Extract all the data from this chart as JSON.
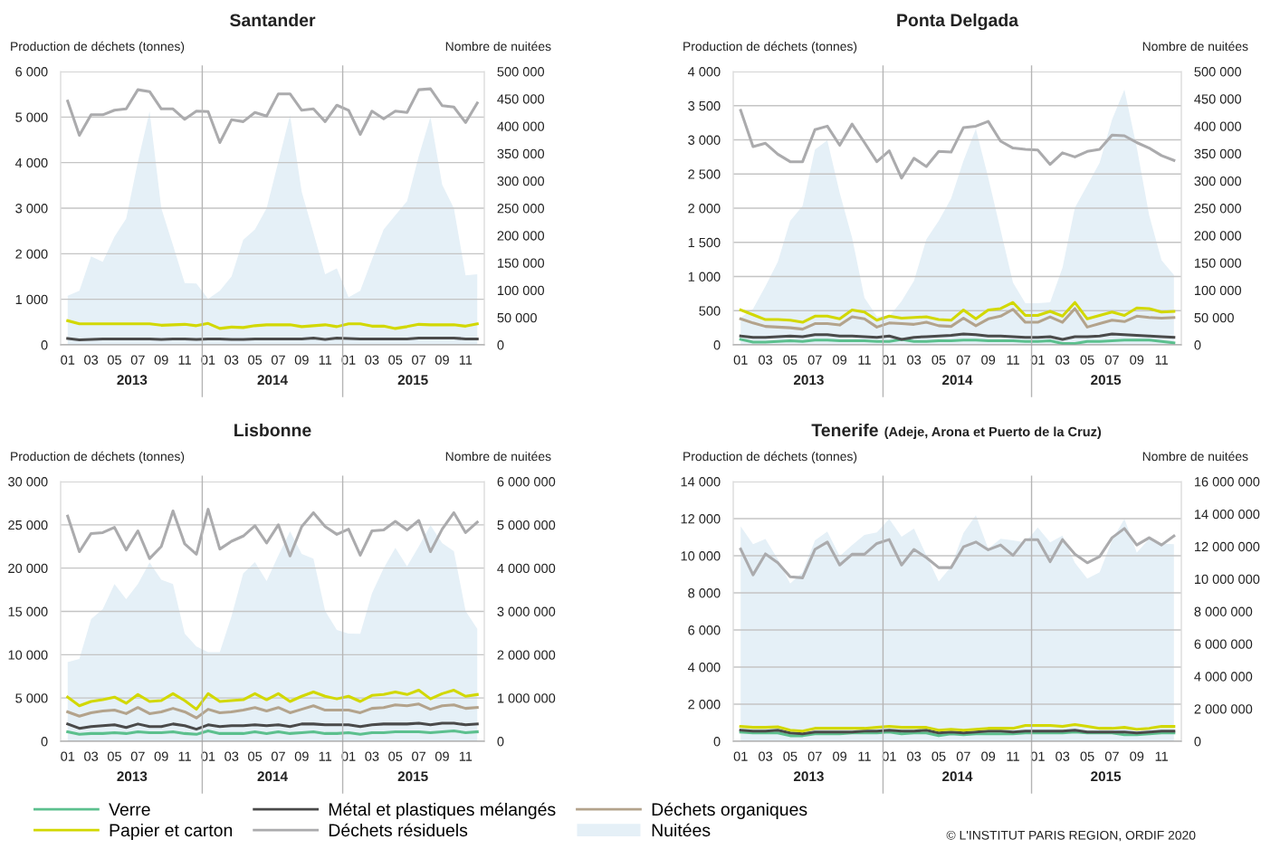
{
  "chart_data": [
    {
      "type": "line",
      "title": "Santander",
      "ylabel": "Production de déchets (tonnes)",
      "y2label": "Nombre de nuitées",
      "grid": "y",
      "legend": "bottom",
      "categories": [
        "01",
        null,
        "03",
        null,
        "05",
        null,
        "07",
        null,
        "09",
        null,
        "11",
        null,
        "01",
        null,
        "03",
        null,
        "05",
        null,
        "07",
        null,
        "09",
        null,
        "11",
        null,
        "01",
        null,
        "03",
        null,
        "05",
        null,
        "07",
        null,
        "09",
        null,
        "11",
        null
      ],
      "ylim": [
        0,
        6000
      ],
      "yticks": [
        0,
        {
          "value": 1000,
          "label": "1 000"
        },
        {
          "value": 2000,
          "label": "2 000"
        },
        {
          "value": 3000,
          "label": "3 000"
        },
        {
          "value": 4000,
          "label": "4 000"
        },
        {
          "value": 5000,
          "label": "5 000"
        },
        {
          "value": 6000,
          "label": "6 000"
        }
      ],
      "y2lim": [
        0,
        500000
      ],
      "y2ticks": [
        0,
        {
          "value": 50000,
          "label": "50 000"
        },
        {
          "value": 100000,
          "label": "100 000"
        },
        {
          "value": 150000,
          "label": "150 000"
        },
        {
          "value": 200000,
          "label": "200 000"
        },
        {
          "value": 250000,
          "label": "250 000"
        },
        {
          "value": 300000,
          "label": "300 000"
        },
        {
          "value": 350000,
          "label": "350 000"
        },
        {
          "value": 400000,
          "label": "400 000"
        },
        {
          "value": 450000,
          "label": "450 000"
        },
        {
          "value": 500000,
          "label": "500 000"
        }
      ],
      "annotations": [
        "2013",
        "2014",
        "2015"
      ],
      "series": [
        {
          "name": "Papier et carton",
          "color": "#d2d800",
          "values": [
            530,
            460,
            460,
            460,
            460,
            460,
            460,
            460,
            430,
            440,
            450,
            420,
            470,
            360,
            390,
            380,
            420,
            440,
            440,
            440,
            400,
            420,
            440,
            400,
            460,
            460,
            410,
            410,
            360,
            400,
            450,
            440,
            440,
            440,
            410,
            460
          ]
        },
        {
          "name": "Métal et plastiques mélangés",
          "color": "#4a4a4a",
          "values": [
            140,
            110,
            120,
            130,
            130,
            130,
            130,
            130,
            120,
            130,
            130,
            120,
            130,
            130,
            120,
            120,
            130,
            130,
            130,
            130,
            130,
            150,
            120,
            150,
            140,
            130,
            130,
            130,
            130,
            130,
            150,
            150,
            150,
            150,
            130,
            130
          ]
        },
        {
          "name": "Déchets résiduels",
          "color": "#ababad",
          "values": [
            5350,
            4600,
            5050,
            5050,
            5150,
            5180,
            5600,
            5560,
            5180,
            5180,
            4950,
            5130,
            5120,
            4440,
            4940,
            4900,
            5100,
            5020,
            5510,
            5510,
            5150,
            5180,
            4900,
            5260,
            5150,
            4620,
            5130,
            4960,
            5130,
            5100,
            5600,
            5620,
            5250,
            5220,
            4880,
            5310
          ]
        },
        {
          "name": "Nuitées",
          "type": "area",
          "axis": "y2",
          "color": "#e5f0f7",
          "values": [
            90000,
            99000,
            162000,
            152000,
            198000,
            231000,
            335000,
            427000,
            250000,
            182000,
            113000,
            112000,
            84000,
            99000,
            125000,
            192000,
            211000,
            250000,
            335000,
            420000,
            280000,
            205000,
            129000,
            140000,
            87000,
            99000,
            156000,
            211000,
            237000,
            263000,
            345000,
            417000,
            293000,
            250000,
            127000,
            129000
          ]
        }
      ]
    },
    {
      "type": "line",
      "title": "Ponta Delgada",
      "ylabel": "Production de déchets (tonnes)",
      "y2label": "Nombre de nuitées",
      "grid": "y",
      "legend": "bottom",
      "categories": [
        "01",
        null,
        "03",
        null,
        "05",
        null,
        "07",
        null,
        "09",
        null,
        "11",
        null,
        "01",
        null,
        "03",
        null,
        "05",
        null,
        "07",
        null,
        "09",
        null,
        "11",
        null,
        "01",
        null,
        "03",
        null,
        "05",
        null,
        "07",
        null,
        "09",
        null,
        "11",
        null
      ],
      "ylim": [
        0,
        4000
      ],
      "yticks": [
        0,
        500,
        {
          "value": 1000,
          "label": "1 000"
        },
        {
          "value": 1500,
          "label": "1 500"
        },
        {
          "value": 2000,
          "label": "2 000"
        },
        {
          "value": 2500,
          "label": "2 500"
        },
        {
          "value": 3000,
          "label": "3 000"
        },
        {
          "value": 3500,
          "label": "3 500"
        },
        {
          "value": 4000,
          "label": "4 000"
        }
      ],
      "y2lim": [
        0,
        500000
      ],
      "y2ticks": [
        0,
        {
          "value": 50000,
          "label": "50 000"
        },
        {
          "value": 100000,
          "label": "100 000"
        },
        {
          "value": 150000,
          "label": "150 000"
        },
        {
          "value": 200000,
          "label": "200 000"
        },
        {
          "value": 250000,
          "label": "250 000"
        },
        {
          "value": 300000,
          "label": "300 000"
        },
        {
          "value": 350000,
          "label": "350 000"
        },
        {
          "value": 400000,
          "label": "400 000"
        },
        {
          "value": 450000,
          "label": "450 000"
        },
        {
          "value": 500000,
          "label": "500 000"
        }
      ],
      "annotations": [
        "2013",
        "2014",
        "2015"
      ],
      "series": [
        {
          "name": "Verre",
          "color": "#5cc08e",
          "values": [
            80,
            40,
            40,
            50,
            60,
            50,
            70,
            70,
            60,
            60,
            60,
            50,
            50,
            80,
            50,
            50,
            60,
            60,
            70,
            70,
            60,
            60,
            60,
            50,
            50,
            60,
            20,
            20,
            50,
            50,
            60,
            70,
            70,
            70,
            50,
            30
          ]
        },
        {
          "name": "Papier et carton",
          "color": "#d2d800",
          "values": [
            510,
            440,
            370,
            370,
            360,
            330,
            420,
            420,
            380,
            510,
            480,
            360,
            420,
            390,
            400,
            410,
            370,
            360,
            510,
            380,
            510,
            530,
            620,
            430,
            430,
            490,
            420,
            620,
            380,
            430,
            480,
            430,
            540,
            530,
            480,
            490
          ]
        },
        {
          "name": "Métal et plastiques mélangés",
          "color": "#4a4a4a",
          "values": [
            130,
            110,
            110,
            120,
            130,
            120,
            150,
            150,
            130,
            130,
            120,
            110,
            130,
            80,
            110,
            120,
            130,
            140,
            160,
            150,
            130,
            130,
            120,
            110,
            110,
            120,
            80,
            120,
            120,
            130,
            160,
            150,
            140,
            130,
            120,
            110
          ]
        },
        {
          "name": "Déchets résiduels",
          "color": "#ababad",
          "values": [
            3430,
            2900,
            2950,
            2790,
            2680,
            2680,
            3150,
            3200,
            2920,
            3230,
            2960,
            2680,
            2840,
            2440,
            2730,
            2610,
            2830,
            2820,
            3180,
            3200,
            3270,
            2980,
            2880,
            2860,
            2850,
            2640,
            2810,
            2750,
            2830,
            2860,
            3070,
            3060,
            2960,
            2880,
            2770,
            2700
          ]
        },
        {
          "name": "Déchets organiques",
          "color": "#b3a38c",
          "values": [
            380,
            320,
            270,
            260,
            250,
            230,
            310,
            310,
            290,
            410,
            380,
            260,
            320,
            310,
            300,
            330,
            280,
            270,
            390,
            280,
            380,
            420,
            520,
            330,
            330,
            410,
            330,
            530,
            260,
            310,
            360,
            340,
            420,
            400,
            390,
            400
          ]
        },
        {
          "name": "Nuitées",
          "type": "area",
          "axis": "y2",
          "color": "#e5f0f7",
          "values": [
            50000,
            66000,
            107000,
            152000,
            227000,
            254000,
            357000,
            374000,
            278000,
            196000,
            86000,
            52000,
            52000,
            80000,
            117000,
            193000,
            227000,
            268000,
            337000,
            395000,
            306000,
            210000,
            114000,
            76000,
            76000,
            78000,
            141000,
            251000,
            292000,
            333000,
            412000,
            467000,
            361000,
            237000,
            155000,
            128000
          ]
        }
      ]
    },
    {
      "type": "line",
      "title": "Lisbonne",
      "ylabel": "Production de déchets (tonnes)",
      "y2label": "Nombre de nuitées",
      "grid": "y",
      "legend": "bottom",
      "categories": [
        "01",
        null,
        "03",
        null,
        "05",
        null,
        "07",
        null,
        "09",
        null,
        "11",
        null,
        "01",
        null,
        "03",
        null,
        "05",
        null,
        "07",
        null,
        "09",
        null,
        "11",
        null,
        "01",
        null,
        "03",
        null,
        "05",
        null,
        "07",
        null,
        "09",
        null,
        "11",
        null
      ],
      "ylim": [
        0,
        30000
      ],
      "yticks": [
        0,
        {
          "value": 5000,
          "label": "5 000"
        },
        {
          "value": 10000,
          "label": "10 000"
        },
        {
          "value": 15000,
          "label": "15 000"
        },
        {
          "value": 20000,
          "label": "20 000"
        },
        {
          "value": 25000,
          "label": "25 000"
        },
        {
          "value": 30000,
          "label": "30 000"
        }
      ],
      "y2lim": [
        0,
        6000000
      ],
      "y2ticks": [
        0,
        {
          "value": 1000000,
          "label": "1 000 000"
        },
        {
          "value": 2000000,
          "label": "2 000 000"
        },
        {
          "value": 3000000,
          "label": "3 000 000"
        },
        {
          "value": 4000000,
          "label": "4 000 000"
        },
        {
          "value": 5000000,
          "label": "5 000 000"
        },
        {
          "value": 6000000,
          "label": "6 000 000"
        }
      ],
      "annotations": [
        "2013",
        "2014",
        "2015"
      ],
      "series": [
        {
          "name": "Verre",
          "color": "#5cc08e",
          "values": [
            1100,
            800,
            900,
            900,
            1000,
            900,
            1100,
            1000,
            1000,
            1100,
            900,
            800,
            1200,
            900,
            900,
            900,
            1100,
            900,
            1100,
            900,
            1000,
            1100,
            900,
            900,
            1000,
            800,
            1000,
            1000,
            1100,
            1100,
            1100,
            1000,
            1100,
            1200,
            1000,
            1100
          ]
        },
        {
          "name": "Papier et carton",
          "color": "#d2d800",
          "values": [
            5100,
            4100,
            4600,
            4800,
            5100,
            4400,
            5400,
            4600,
            4700,
            5500,
            4700,
            3700,
            5500,
            4600,
            4700,
            4800,
            5500,
            4800,
            5500,
            4600,
            5200,
            5700,
            5200,
            4900,
            5200,
            4600,
            5300,
            5400,
            5700,
            5400,
            5900,
            4900,
            5500,
            5900,
            5200,
            5400
          ]
        },
        {
          "name": "Métal et plastiques mélangés",
          "color": "#4a4a4a",
          "values": [
            2000,
            1500,
            1700,
            1800,
            1900,
            1600,
            2000,
            1700,
            1700,
            2000,
            1800,
            1400,
            1900,
            1700,
            1800,
            1800,
            1900,
            1800,
            1900,
            1700,
            2000,
            2000,
            1900,
            1900,
            1900,
            1700,
            1900,
            2000,
            2000,
            2000,
            2100,
            1900,
            2100,
            2100,
            1900,
            2000
          ]
        },
        {
          "name": "Déchets résiduels",
          "color": "#ababad",
          "values": [
            26000,
            21900,
            24000,
            24100,
            24700,
            22100,
            24300,
            21100,
            22500,
            26600,
            22800,
            21600,
            26800,
            22200,
            23100,
            23700,
            24900,
            22900,
            25000,
            21400,
            24800,
            26400,
            24800,
            23900,
            24500,
            21500,
            24300,
            24400,
            25400,
            24400,
            25500,
            21900,
            24500,
            26400,
            24100,
            25300
          ]
        },
        {
          "name": "Déchets organiques",
          "color": "#b3a38c",
          "values": [
            3400,
            2900,
            3300,
            3500,
            3600,
            3200,
            3900,
            3200,
            3400,
            3800,
            3400,
            2700,
            3700,
            3300,
            3400,
            3600,
            3900,
            3500,
            3900,
            3300,
            3700,
            4100,
            3600,
            3600,
            3600,
            3300,
            3800,
            3900,
            4200,
            4100,
            4300,
            3700,
            4100,
            4200,
            3800,
            3900
          ]
        },
        {
          "name": "Nuitées",
          "type": "area",
          "axis": "y2",
          "color": "#e5f0f7",
          "values": [
            1830000,
            1900000,
            2820000,
            3050000,
            3630000,
            3280000,
            3630000,
            4130000,
            3730000,
            3630000,
            2490000,
            2190000,
            2060000,
            2060000,
            2890000,
            3880000,
            4140000,
            3700000,
            4290000,
            4850000,
            4330000,
            4220000,
            3010000,
            2570000,
            2490000,
            2480000,
            3420000,
            4000000,
            4470000,
            4040000,
            4500000,
            4990000,
            4580000,
            4390000,
            3010000,
            2600000
          ]
        }
      ]
    },
    {
      "type": "line",
      "title": "Tenerife",
      "subtitle": "(Adeje, Arona et Puerto de la Cruz)",
      "ylabel": "Production de déchets (tonnes)",
      "y2label": "Nombre de nuitées",
      "grid": "y",
      "legend": "bottom",
      "categories": [
        "01",
        null,
        "03",
        null,
        "05",
        null,
        "07",
        null,
        "09",
        null,
        "11",
        null,
        "01",
        null,
        "03",
        null,
        "05",
        null,
        "07",
        null,
        "09",
        null,
        "11",
        null,
        "01",
        null,
        "03",
        null,
        "05",
        null,
        "07",
        null,
        "09",
        null,
        "11",
        null
      ],
      "ylim": [
        0,
        14000
      ],
      "yticks": [
        0,
        {
          "value": 2000,
          "label": "2 000"
        },
        {
          "value": 4000,
          "label": "4 000"
        },
        {
          "value": 6000,
          "label": "6 000"
        },
        {
          "value": 8000,
          "label": "8 000"
        },
        {
          "value": 10000,
          "label": "10 000"
        },
        {
          "value": 12000,
          "label": "12 000"
        },
        {
          "value": 14000,
          "label": "14 000"
        }
      ],
      "y2lim": [
        0,
        16000000
      ],
      "y2ticks": [
        0,
        {
          "value": 2000000,
          "label": "2 000 000"
        },
        {
          "value": 4000000,
          "label": "4 000 000"
        },
        {
          "value": 6000000,
          "label": "6 000 000"
        },
        {
          "value": 8000000,
          "label": "8 000 000"
        },
        {
          "value": 10000000,
          "label": "10 000 000"
        },
        {
          "value": 12000000,
          "label": "12 000 000"
        },
        {
          "value": 14000000,
          "label": "14 000 000"
        },
        {
          "value": 16000000,
          "label": "16 000 000"
        }
      ],
      "annotations": [
        "2013",
        "2014",
        "2015",
        "© L'INSTITUT PARIS REGION, ORDIF 2020"
      ],
      "series": [
        {
          "name": "Verre",
          "color": "#5cc08e",
          "values": [
            500,
            450,
            450,
            450,
            300,
            300,
            400,
            400,
            400,
            450,
            450,
            450,
            500,
            400,
            450,
            450,
            300,
            400,
            350,
            400,
            400,
            400,
            400,
            450,
            450,
            450,
            450,
            500,
            450,
            450,
            450,
            350,
            350,
            400,
            450,
            450
          ]
        },
        {
          "name": "Métal et plastiques mélangés",
          "color": "#4a4a4a",
          "values": [
            600,
            550,
            550,
            600,
            450,
            400,
            500,
            500,
            500,
            500,
            550,
            550,
            600,
            550,
            550,
            600,
            450,
            500,
            450,
            500,
            550,
            550,
            500,
            550,
            550,
            550,
            550,
            600,
            500,
            500,
            500,
            500,
            450,
            500,
            550,
            550
          ]
        },
        {
          "name": "Papier et carton",
          "color": "#d2d800",
          "values": [
            800,
            750,
            750,
            780,
            600,
            550,
            700,
            700,
            700,
            700,
            700,
            750,
            800,
            750,
            750,
            750,
            600,
            650,
            600,
            650,
            700,
            700,
            700,
            850,
            850,
            850,
            800,
            900,
            800,
            700,
            700,
            750,
            650,
            700,
            800,
            800
          ]
        },
        {
          "name": "Déchets résiduels",
          "color": "#ababad",
          "values": [
            10360,
            8970,
            10100,
            9620,
            8870,
            8810,
            10340,
            10740,
            9500,
            10080,
            10080,
            10660,
            10870,
            9500,
            10340,
            9900,
            9360,
            9360,
            10480,
            10740,
            10320,
            10580,
            10020,
            10870,
            10870,
            9680,
            10870,
            10080,
            9620,
            9960,
            10970,
            11470,
            10580,
            10970,
            10580,
            11070
          ]
        },
        {
          "name": "Nuitées",
          "type": "area",
          "axis": "y2",
          "color": "#e5f0f7",
          "values": [
            13240000,
            12140000,
            12460000,
            11220000,
            9720000,
            10410000,
            12370000,
            12920000,
            11400000,
            12090000,
            12710000,
            12870000,
            13700000,
            12600000,
            13100000,
            11450000,
            9840000,
            10760000,
            12830000,
            13930000,
            11860000,
            12480000,
            12370000,
            12250000,
            13170000,
            12250000,
            12670000,
            10990000,
            10020000,
            10410000,
            12370000,
            13700000,
            11630000,
            12480000,
            12180000,
            12140000
          ]
        }
      ]
    }
  ]
}
